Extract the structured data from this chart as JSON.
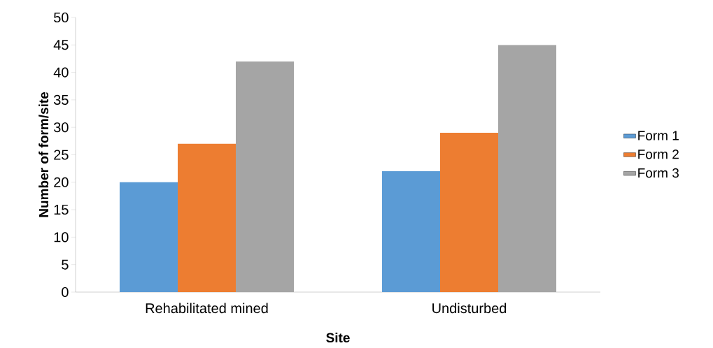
{
  "chart_data": {
    "type": "bar",
    "xlabel": "Site",
    "ylabel": "Number of form/site",
    "categories": [
      "Rehabilitated mined",
      "Undisturbed"
    ],
    "series": [
      {
        "name": "Form 1",
        "color": "#5b9bd5",
        "values": [
          20,
          22
        ]
      },
      {
        "name": "Form 2",
        "color": "#ed7d31",
        "values": [
          27,
          29
        ]
      },
      {
        "name": "Form 3",
        "color": "#a5a5a5",
        "values": [
          42,
          45
        ]
      }
    ],
    "ylim": [
      0,
      50
    ],
    "yticks": [
      0,
      5,
      10,
      15,
      20,
      25,
      30,
      35,
      40,
      45,
      50
    ],
    "legend": "right"
  }
}
